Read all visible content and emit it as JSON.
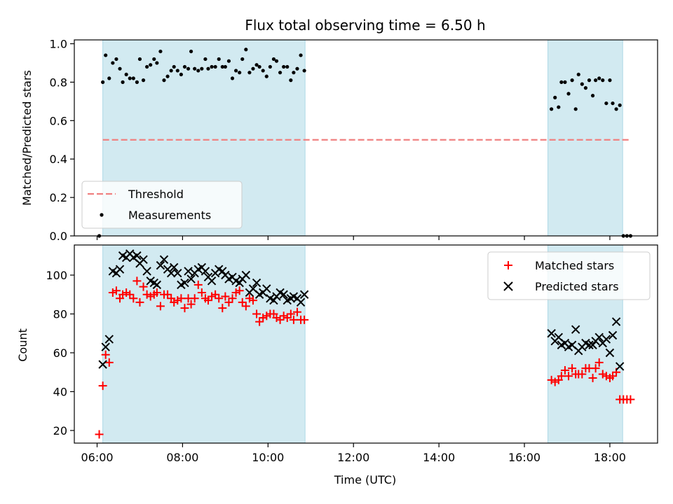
{
  "chart_data": [
    {
      "type": "scatter",
      "title": "Flux total observing time = 6.50 h",
      "ylabel": "Matched/Predicted stars",
      "xlabel": "",
      "ylim": [
        0,
        1.02
      ],
      "yticks": [
        0.0,
        0.2,
        0.4,
        0.6,
        0.8,
        1.0
      ],
      "ytick_labels": [
        "0.0",
        "0.2",
        "0.4",
        "0.6",
        "0.8",
        "1.0"
      ],
      "shaded_intervals": [
        [
          "06:08",
          "10:52"
        ],
        [
          "16:33",
          "18:18"
        ]
      ],
      "threshold": {
        "name": "Threshold",
        "value": 0.5,
        "x_range": [
          "06:08",
          "18:30"
        ],
        "color": "#f08080",
        "style": "dashed"
      },
      "series": [
        {
          "name": "Measurements",
          "marker": "dot",
          "color": "#000000",
          "x": [
            "06:03",
            "06:08",
            "06:12",
            "06:17",
            "06:22",
            "06:27",
            "06:32",
            "06:36",
            "06:41",
            "06:46",
            "06:51",
            "06:56",
            "07:00",
            "07:05",
            "07:10",
            "07:15",
            "07:20",
            "07:24",
            "07:29",
            "07:34",
            "07:39",
            "07:44",
            "07:48",
            "07:53",
            "07:58",
            "08:03",
            "08:08",
            "08:12",
            "08:17",
            "08:22",
            "08:27",
            "08:32",
            "08:36",
            "08:41",
            "08:46",
            "08:51",
            "08:56",
            "09:00",
            "09:05",
            "09:10",
            "09:15",
            "09:20",
            "09:24",
            "09:29",
            "09:34",
            "09:39",
            "09:44",
            "09:48",
            "09:53",
            "09:58",
            "10:03",
            "10:08",
            "10:12",
            "10:17",
            "10:22",
            "10:27",
            "10:32",
            "10:36",
            "10:41",
            "10:46",
            "10:51",
            "16:38",
            "16:43",
            "16:48",
            "16:52",
            "16:57",
            "17:02",
            "17:07",
            "17:12",
            "17:16",
            "17:21",
            "17:26",
            "17:31",
            "17:36",
            "17:40",
            "17:45",
            "17:50",
            "17:55",
            "18:00",
            "18:04",
            "18:09",
            "18:14",
            "18:19",
            "18:24",
            "18:29"
          ],
          "values": [
            0.0,
            0.8,
            0.94,
            0.82,
            0.9,
            0.92,
            0.87,
            0.8,
            0.84,
            0.82,
            0.82,
            0.8,
            0.92,
            0.81,
            0.88,
            0.89,
            0.92,
            0.9,
            0.96,
            0.81,
            0.83,
            0.86,
            0.88,
            0.86,
            0.84,
            0.88,
            0.87,
            0.96,
            0.87,
            0.86,
            0.87,
            0.92,
            0.87,
            0.88,
            0.88,
            0.92,
            0.88,
            0.88,
            0.91,
            0.82,
            0.86,
            0.85,
            0.92,
            0.97,
            0.85,
            0.87,
            0.89,
            0.88,
            0.86,
            0.83,
            0.88,
            0.92,
            0.91,
            0.85,
            0.88,
            0.88,
            0.81,
            0.85,
            0.87,
            0.94,
            0.86,
            0.66,
            0.72,
            0.67,
            0.8,
            0.8,
            0.74,
            0.81,
            0.66,
            0.84,
            0.79,
            0.77,
            0.81,
            0.73,
            0.81,
            0.82,
            0.81,
            0.69,
            0.81,
            0.69,
            0.66,
            0.68,
            0.0,
            0.0,
            0.0
          ]
        }
      ],
      "legend": {
        "position": "lower-left",
        "entries": [
          "Threshold",
          "Measurements"
        ]
      }
    },
    {
      "type": "scatter",
      "title": "",
      "xlabel": "Time (UTC)",
      "ylabel": "Count",
      "ylim": [
        13.5,
        115.5
      ],
      "xlim": [
        "05:28",
        "19:07"
      ],
      "yticks": [
        20,
        40,
        60,
        80,
        100
      ],
      "ytick_labels": [
        "20",
        "40",
        "60",
        "80",
        "100"
      ],
      "xticks": [
        "06:00",
        "08:00",
        "10:00",
        "12:00",
        "14:00",
        "16:00",
        "18:00"
      ],
      "shaded_intervals": [
        [
          "06:08",
          "10:52"
        ],
        [
          "16:33",
          "18:18"
        ]
      ],
      "series": [
        {
          "name": "Matched stars",
          "marker": "plus",
          "color": "#ff0000",
          "x": [
            "06:03",
            "06:08",
            "06:12",
            "06:17",
            "06:22",
            "06:27",
            "06:32",
            "06:36",
            "06:41",
            "06:46",
            "06:51",
            "06:56",
            "07:00",
            "07:05",
            "07:10",
            "07:15",
            "07:20",
            "07:24",
            "07:29",
            "07:34",
            "07:39",
            "07:44",
            "07:48",
            "07:53",
            "07:58",
            "08:03",
            "08:08",
            "08:12",
            "08:17",
            "08:22",
            "08:27",
            "08:32",
            "08:36",
            "08:41",
            "08:46",
            "08:51",
            "08:56",
            "09:00",
            "09:05",
            "09:10",
            "09:15",
            "09:20",
            "09:24",
            "09:29",
            "09:34",
            "09:39",
            "09:44",
            "09:48",
            "09:53",
            "09:58",
            "10:03",
            "10:08",
            "10:12",
            "10:17",
            "10:22",
            "10:27",
            "10:32",
            "10:36",
            "10:41",
            "10:46",
            "10:51",
            "16:38",
            "16:43",
            "16:48",
            "16:52",
            "16:57",
            "17:02",
            "17:07",
            "17:12",
            "17:16",
            "17:21",
            "17:26",
            "17:31",
            "17:36",
            "17:40",
            "17:45",
            "17:50",
            "17:55",
            "18:00",
            "18:04",
            "18:09",
            "18:14",
            "18:19",
            "18:24",
            "18:29"
          ],
          "values": [
            18,
            43,
            59,
            55,
            91,
            92,
            88,
            90,
            91,
            90,
            88,
            97,
            86,
            94,
            90,
            89,
            90,
            91,
            84,
            90,
            90,
            88,
            86,
            87,
            88,
            83,
            88,
            85,
            88,
            95,
            91,
            88,
            87,
            89,
            90,
            88,
            83,
            89,
            86,
            88,
            91,
            92,
            86,
            84,
            88,
            87,
            80,
            76,
            78,
            79,
            80,
            80,
            78,
            77,
            79,
            78,
            80,
            77,
            81,
            77,
            77,
            46,
            45,
            46,
            48,
            51,
            48,
            52,
            49,
            49,
            49,
            52,
            52,
            47,
            52,
            55,
            49,
            48,
            47,
            48,
            50,
            36,
            36,
            36,
            36
          ]
        },
        {
          "name": "Predicted stars",
          "marker": "x",
          "color": "#000000",
          "x": [
            "06:08",
            "06:12",
            "06:17",
            "06:22",
            "06:27",
            "06:32",
            "06:36",
            "06:41",
            "06:46",
            "06:51",
            "06:56",
            "07:00",
            "07:05",
            "07:10",
            "07:15",
            "07:20",
            "07:24",
            "07:29",
            "07:34",
            "07:39",
            "07:44",
            "07:48",
            "07:53",
            "07:58",
            "08:03",
            "08:08",
            "08:12",
            "08:17",
            "08:22",
            "08:27",
            "08:32",
            "08:36",
            "08:41",
            "08:46",
            "08:51",
            "08:56",
            "09:00",
            "09:05",
            "09:10",
            "09:15",
            "09:20",
            "09:24",
            "09:29",
            "09:34",
            "09:39",
            "09:44",
            "09:48",
            "09:53",
            "09:58",
            "10:03",
            "10:08",
            "10:12",
            "10:17",
            "10:22",
            "10:27",
            "10:32",
            "10:36",
            "10:41",
            "10:46",
            "10:51",
            "16:38",
            "16:43",
            "16:48",
            "16:52",
            "16:57",
            "17:02",
            "17:07",
            "17:12",
            "17:16",
            "17:21",
            "17:26",
            "17:31",
            "17:36",
            "17:40",
            "17:45",
            "17:50",
            "17:55",
            "18:00",
            "18:04",
            "18:09",
            "18:14"
          ],
          "values": [
            54,
            63,
            67,
            102,
            101,
            103,
            110,
            109,
            111,
            109,
            110,
            106,
            108,
            102,
            97,
            96,
            95,
            105,
            108,
            103,
            101,
            104,
            101,
            95,
            96,
            102,
            98,
            101,
            103,
            104,
            102,
            99,
            97,
            101,
            103,
            102,
            100,
            98,
            99,
            97,
            96,
            98,
            100,
            91,
            93,
            96,
            90,
            91,
            93,
            88,
            87,
            89,
            91,
            90,
            87,
            88,
            89,
            88,
            86,
            90,
            70,
            66,
            68,
            64,
            65,
            63,
            64,
            72,
            61,
            63,
            65,
            64,
            64,
            66,
            68,
            65,
            67,
            60,
            69,
            76,
            53
          ]
        }
      ],
      "legend": {
        "position": "top-right",
        "entries": [
          "Matched stars",
          "Predicted stars"
        ]
      }
    }
  ],
  "colors": {
    "shade": "#add8e6",
    "shade_opacity": 0.55,
    "threshold": "#f08080",
    "matched": "#ff0000",
    "predicted": "#000000",
    "legend_frame": "#cccccc"
  }
}
